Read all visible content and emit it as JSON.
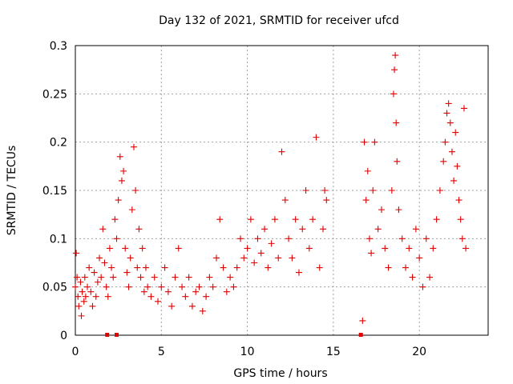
{
  "chart_data": {
    "type": "scatter",
    "title": "Day 132 of 2021, SRMTID for receiver ufcd",
    "xlabel": "GPS time / hours",
    "ylabel": "SRMTID / TECUs",
    "xlim": [
      0,
      24
    ],
    "ylim": [
      0,
      0.3
    ],
    "x_ticks": [
      0,
      5,
      10,
      15,
      20
    ],
    "x_tick_labels": [
      "0",
      "5",
      "10",
      "15",
      "20"
    ],
    "y_ticks": [
      0,
      0.05,
      0.1,
      0.15,
      0.2,
      0.25,
      0.3
    ],
    "y_tick_labels": [
      "0",
      "0.05",
      "0.1",
      "0.15",
      "0.2",
      "0.25",
      "0.3"
    ],
    "grid": true,
    "marker": "plus",
    "color": "#e00000",
    "series": [
      {
        "name": "SRMTID",
        "x": [
          0.0,
          0.05,
          0.1,
          0.15,
          0.2,
          0.3,
          0.35,
          0.4,
          0.5,
          0.55,
          0.6,
          0.7,
          0.8,
          0.9,
          1.0,
          1.1,
          1.2,
          1.3,
          1.4,
          1.5,
          1.6,
          1.7,
          1.8,
          1.9,
          2.0,
          2.1,
          2.2,
          2.3,
          2.4,
          2.5,
          2.6,
          2.7,
          2.8,
          2.9,
          3.0,
          3.1,
          3.2,
          3.3,
          3.4,
          3.5,
          3.6,
          3.7,
          3.8,
          3.9,
          4.0,
          4.1,
          4.2,
          4.4,
          4.6,
          4.8,
          5.0,
          5.2,
          5.4,
          5.6,
          5.8,
          6.0,
          6.2,
          6.4,
          6.6,
          6.8,
          7.0,
          7.2,
          7.4,
          7.6,
          7.8,
          8.0,
          8.2,
          8.4,
          8.6,
          8.8,
          9.0,
          9.2,
          9.4,
          9.6,
          9.8,
          10.0,
          10.2,
          10.4,
          10.6,
          10.8,
          11.0,
          11.2,
          11.4,
          11.6,
          11.8,
          12.0,
          12.2,
          12.4,
          12.6,
          12.8,
          13.0,
          13.2,
          13.4,
          13.6,
          13.8,
          14.0,
          14.2,
          14.4,
          14.5,
          14.6,
          16.7,
          16.8,
          16.9,
          17.0,
          17.1,
          17.2,
          17.3,
          17.4,
          17.6,
          17.8,
          18.0,
          18.2,
          18.4,
          18.5,
          18.55,
          18.6,
          18.65,
          18.7,
          18.8,
          19.0,
          19.2,
          19.4,
          19.6,
          19.8,
          20.0,
          20.2,
          20.4,
          20.6,
          20.8,
          21.0,
          21.2,
          21.4,
          21.5,
          21.6,
          21.7,
          21.8,
          21.9,
          22.0,
          22.1,
          22.2,
          22.3,
          22.4,
          22.5,
          22.6,
          22.7
        ],
        "y": [
          0.05,
          0.085,
          0.06,
          0.04,
          0.03,
          0.055,
          0.02,
          0.045,
          0.035,
          0.06,
          0.04,
          0.05,
          0.07,
          0.045,
          0.03,
          0.065,
          0.04,
          0.055,
          0.08,
          0.06,
          0.11,
          0.075,
          0.05,
          0.04,
          0.09,
          0.07,
          0.06,
          0.12,
          0.1,
          0.14,
          0.185,
          0.16,
          0.17,
          0.09,
          0.065,
          0.05,
          0.08,
          0.13,
          0.195,
          0.15,
          0.07,
          0.11,
          0.06,
          0.09,
          0.045,
          0.07,
          0.05,
          0.04,
          0.06,
          0.035,
          0.05,
          0.07,
          0.045,
          0.03,
          0.06,
          0.09,
          0.05,
          0.04,
          0.06,
          0.03,
          0.045,
          0.05,
          0.025,
          0.04,
          0.06,
          0.05,
          0.08,
          0.12,
          0.07,
          0.045,
          0.06,
          0.05,
          0.07,
          0.1,
          0.08,
          0.09,
          0.12,
          0.075,
          0.1,
          0.085,
          0.11,
          0.07,
          0.095,
          0.12,
          0.08,
          0.19,
          0.14,
          0.1,
          0.08,
          0.12,
          0.065,
          0.11,
          0.15,
          0.09,
          0.12,
          0.205,
          0.07,
          0.11,
          0.15,
          0.14,
          0.015,
          0.2,
          0.14,
          0.17,
          0.1,
          0.085,
          0.15,
          0.2,
          0.11,
          0.13,
          0.09,
          0.07,
          0.15,
          0.25,
          0.275,
          0.29,
          0.22,
          0.18,
          0.13,
          0.1,
          0.07,
          0.09,
          0.06,
          0.11,
          0.08,
          0.05,
          0.1,
          0.06,
          0.09,
          0.12,
          0.15,
          0.18,
          0.2,
          0.23,
          0.24,
          0.22,
          0.19,
          0.16,
          0.21,
          0.175,
          0.14,
          0.12,
          0.1,
          0.235,
          0.09
        ]
      }
    ],
    "zero_markers_x": [
      1.85,
      2.4,
      16.6
    ]
  }
}
